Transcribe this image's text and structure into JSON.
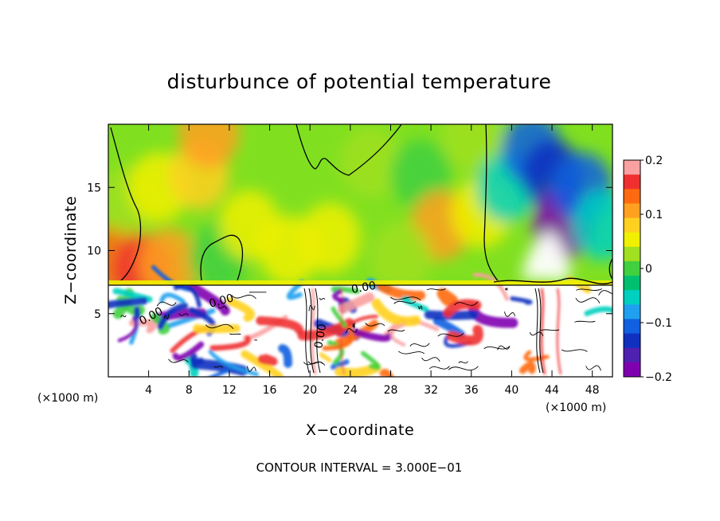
{
  "chart_data": {
    "type": "heatmap",
    "title": "disturbunce of potential temperature",
    "xlabel": "X−coordinate",
    "ylabel": "Z−coordinate",
    "x_unit_left": "(×1000 m)",
    "x_unit_right": "(×1000 m)",
    "footnote": "CONTOUR INTERVAL = 3.000E−01",
    "xlim": [
      0,
      50
    ],
    "ylim": [
      0,
      20
    ],
    "x_ticks": [
      4,
      8,
      12,
      16,
      20,
      24,
      28,
      32,
      36,
      40,
      44,
      48
    ],
    "x_tick_labels": [
      "4",
      "8",
      "12",
      "16",
      "20",
      "24",
      "28",
      "32",
      "36",
      "40",
      "44",
      "48"
    ],
    "y_ticks": [
      5,
      10,
      15
    ],
    "y_tick_labels": [
      "5",
      "10",
      "15"
    ],
    "colorbar": {
      "range": [
        -0.2,
        0.2
      ],
      "ticks": [
        0.2,
        0.1,
        0,
        -0.1,
        -0.2
      ],
      "tick_labels": [
        "0.2",
        "0.1",
        "0",
        "−0.1",
        "−0.2"
      ],
      "colors": [
        "#f9a0a0",
        "#f03030",
        "#ff6a10",
        "#ffa020",
        "#ffd020",
        "#f0f000",
        "#a0e020",
        "#40d040",
        "#00c070",
        "#00d0c0",
        "#20a0f0",
        "#1060e0",
        "#1030c0",
        "#5020b0",
        "#8000b0"
      ]
    },
    "contour_labels": [
      "0.00",
      "0.00",
      "0.00",
      "0.00"
    ],
    "interface_height": 7.3,
    "upper_field": [
      {
        "x": 1,
        "z": 9.5,
        "v": 0.14
      },
      {
        "x": 3.5,
        "z": 8.5,
        "v": 0.16
      },
      {
        "x": 6,
        "z": 9,
        "v": 0.1
      },
      {
        "x": 2,
        "z": 14,
        "v": 0.02
      },
      {
        "x": 5,
        "z": 15,
        "v": 0.06
      },
      {
        "x": 9,
        "z": 16,
        "v": 0.07
      },
      {
        "x": 10,
        "z": 19.3,
        "v": 0.1
      },
      {
        "x": 11,
        "z": 9.5,
        "v": -0.01
      },
      {
        "x": 14,
        "z": 12,
        "v": 0.04
      },
      {
        "x": 18,
        "z": 10,
        "v": 0.06
      },
      {
        "x": 22,
        "z": 11,
        "v": 0.05
      },
      {
        "x": 26,
        "z": 17,
        "v": 0.03
      },
      {
        "x": 31,
        "z": 16,
        "v": 0.01
      },
      {
        "x": 33,
        "z": 12,
        "v": 0.12
      },
      {
        "x": 29,
        "z": 9.5,
        "v": 0.03
      },
      {
        "x": 37,
        "z": 13,
        "v": 0.04
      },
      {
        "x": 36,
        "z": 19,
        "v": 0.02
      },
      {
        "x": 39.5,
        "z": 15,
        "v": -0.04
      },
      {
        "x": 42,
        "z": 18,
        "v": -0.1
      },
      {
        "x": 44,
        "z": 16,
        "v": -0.14
      },
      {
        "x": 45,
        "z": 12,
        "v": -0.2
      },
      {
        "x": 47,
        "z": 15,
        "v": -0.1
      },
      {
        "x": 49,
        "z": 12,
        "v": -0.06
      }
    ]
  }
}
